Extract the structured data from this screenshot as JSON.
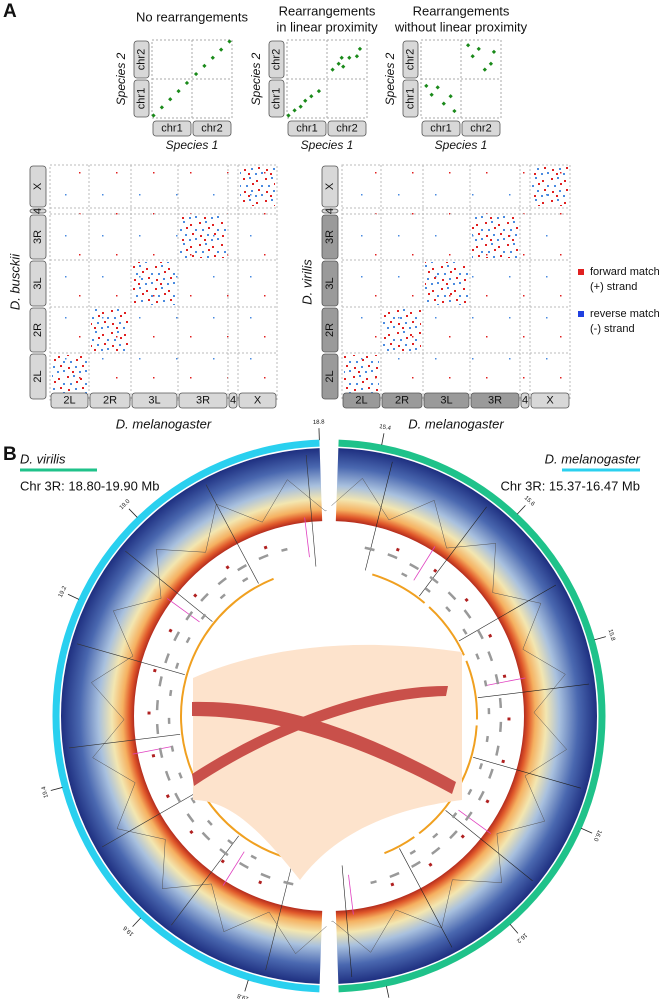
{
  "panel_a": {
    "label": "A",
    "schematics": [
      {
        "title": [
          "No rearrangements"
        ],
        "y_axis": "Species 2",
        "x_axis": "Species 1",
        "y_chromosomes": [
          "chr2",
          "chr1"
        ],
        "x_chromosomes": [
          "chr1",
          "chr2"
        ]
      },
      {
        "title": [
          "Rearrangements",
          "in linear proximity"
        ],
        "y_axis": "Species 2",
        "x_axis": "Species 1",
        "y_chromosomes": [
          "chr2",
          "chr1"
        ],
        "x_chromosomes": [
          "chr1",
          "chr2"
        ]
      },
      {
        "title": [
          "Rearrangements",
          "without linear proximity"
        ],
        "y_axis": "Species 2",
        "x_axis": "Species 1",
        "y_chromosomes": [
          "chr2",
          "chr1"
        ],
        "x_chromosomes": [
          "chr1",
          "chr2"
        ]
      }
    ],
    "dotplots": [
      {
        "y_axis": "D. busckii",
        "x_axis": "D. melanogaster",
        "y_chromosomes": [
          "X",
          "4",
          "3R",
          "3L",
          "2R",
          "2L"
        ],
        "x_chromosomes": [
          "2L",
          "2R",
          "3L",
          "3R",
          "4",
          "X"
        ]
      },
      {
        "y_axis": "D. virilis",
        "x_axis": "D. melanogaster",
        "y_chromosomes": [
          "X",
          "4",
          "3R",
          "3L",
          "2R",
          "2L"
        ],
        "x_chromosomes": [
          "2L",
          "2R",
          "3L",
          "3R",
          "4",
          "X"
        ]
      }
    ],
    "legend": [
      {
        "label": "forward match",
        "sublabel": "(+) strand",
        "color": "#e02020"
      },
      {
        "label": "reverse match",
        "sublabel": "(-) strand",
        "color": "#2040e0"
      }
    ]
  },
  "panel_b": {
    "label": "B",
    "left": {
      "species": "D. virilis",
      "region": "Chr 3R: 18.80-19.90 Mb",
      "color": "#1fc28a",
      "ticks": [
        "18.8",
        "19.0",
        "19.2",
        "19.4",
        "19.6",
        "19.8"
      ]
    },
    "right": {
      "species": "D. melanogaster",
      "region": "Chr 3R: 15.37-16.47 Mb",
      "color": "#2ad0ef",
      "ticks": [
        "15.4",
        "15.6",
        "15.8",
        "16.0",
        "16.2",
        "16.4"
      ]
    }
  }
}
